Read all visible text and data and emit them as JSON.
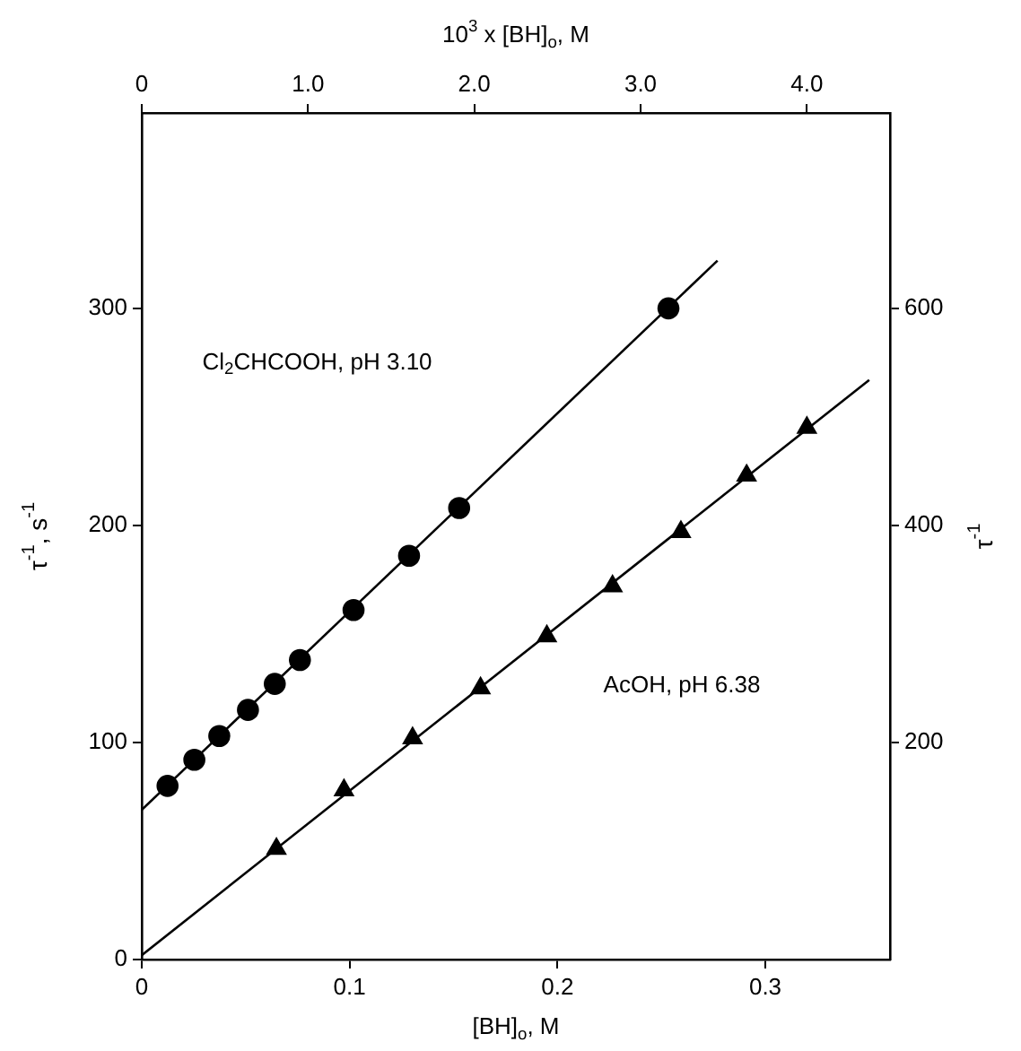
{
  "chart_data": {
    "type": "scatter",
    "xlabel": "[BH]$_{o}$, M",
    "x2label": "10$^{3}$ x [BH]$_{o}$, M",
    "ylabel": "τ$^{-1}$, s$^{-1}$",
    "y2label": "τ$^{-1}$",
    "xlim": [
      0,
      0.36
    ],
    "xticks": [
      0,
      0.1,
      0.2,
      0.3
    ],
    "x2lim": [
      0,
      4.5
    ],
    "x2ticks": [
      0,
      {
        "value": 1,
        "label": "1.0"
      },
      {
        "value": 2,
        "label": "2.0"
      },
      {
        "value": 3,
        "label": "3.0"
      },
      {
        "value": 4,
        "label": "4.0"
      }
    ],
    "ylim": [
      0,
      390
    ],
    "yticks": [
      0,
      100,
      200,
      300
    ],
    "y2lim": [
      0,
      780
    ],
    "y2ticks": [
      200,
      400,
      600
    ],
    "legend": false,
    "series": [
      {
        "marker": "circle",
        "color": "#000000",
        "x": [
          0.0124,
          0.0253,
          0.0373,
          0.0511,
          0.064,
          0.0761,
          0.1019,
          0.1286,
          0.1527,
          0.2534
        ],
        "values": [
          80,
          92,
          103,
          115,
          127,
          138,
          161,
          186,
          208,
          300
        ]
      },
      {
        "marker": "triangle",
        "color": "#000000",
        "x": [
          0.0648,
          0.0973,
          0.1303,
          0.163,
          0.1949,
          0.2265,
          0.2594,
          0.291,
          0.32
        ],
        "values": [
          51,
          78,
          102,
          125,
          149,
          172,
          197,
          223,
          245
        ]
      },
      {
        "type": "line",
        "marker": "none",
        "color": "#000000",
        "x": [
          0,
          0.277
        ],
        "values": [
          69,
          322
        ]
      },
      {
        "type": "line",
        "marker": "none",
        "color": "#000000",
        "x": [
          0,
          0.35
        ],
        "values": [
          2,
          267
        ]
      }
    ],
    "annotations": [
      "Cl$_{2}$CHCOOH, pH 3.10",
      "AcOH, pH 6.38"
    ]
  }
}
